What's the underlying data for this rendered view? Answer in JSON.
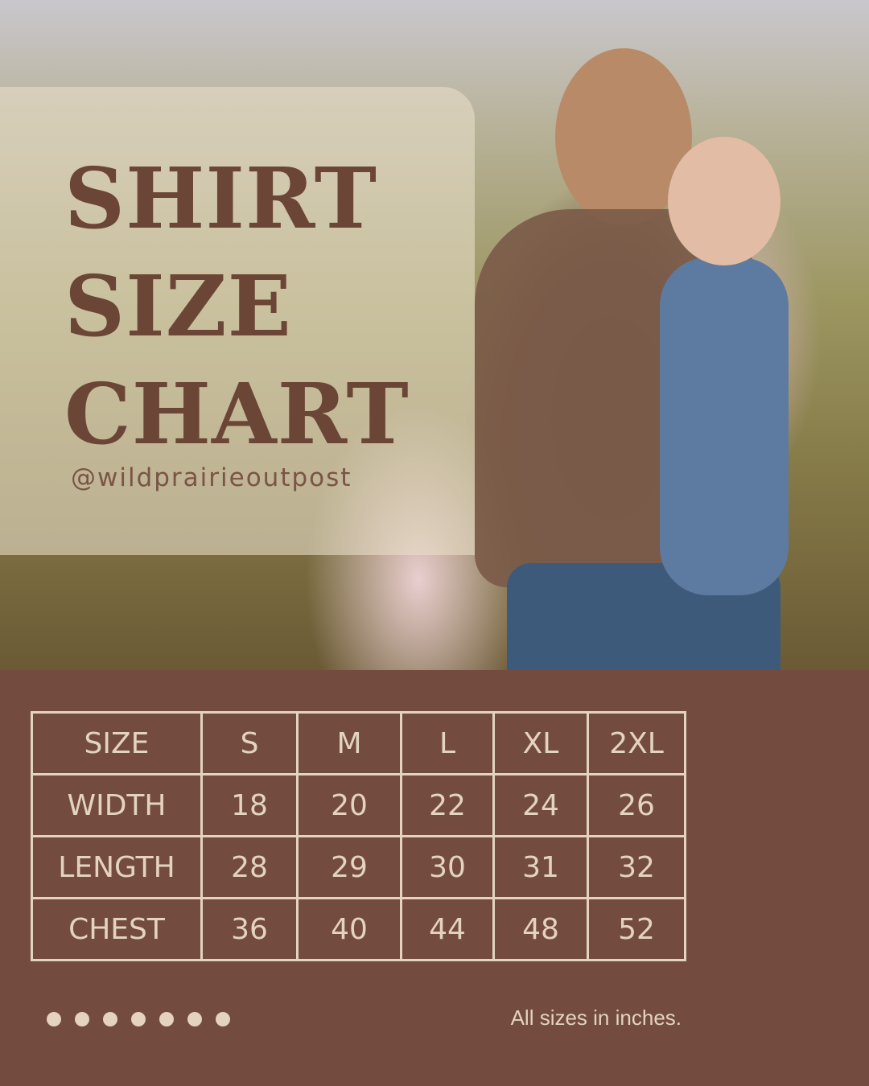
{
  "title_lines": [
    "SHIRT",
    "SIZE",
    "CHART"
  ],
  "handle": "@wildprairieoutpost",
  "table": {
    "header": [
      "SIZE",
      "S",
      "M",
      "L",
      "XL",
      "2XL"
    ],
    "rows": [
      {
        "label": "WIDTH",
        "values": [
          "18",
          "20",
          "22",
          "24",
          "26"
        ]
      },
      {
        "label": "LENGTH",
        "values": [
          "28",
          "29",
          "30",
          "31",
          "32"
        ]
      },
      {
        "label": "CHEST",
        "values": [
          "36",
          "40",
          "44",
          "48",
          "52"
        ]
      }
    ]
  },
  "note": "All sizes in inches.",
  "dot_count": 7,
  "colors": {
    "background": "#734c3f",
    "cream": "#e3d3bf",
    "title": "#6b4535"
  }
}
